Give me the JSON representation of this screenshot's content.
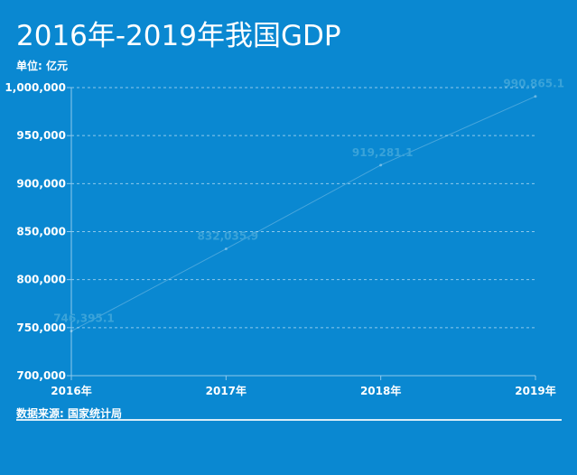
{
  "header": {
    "title": "2016年-2019年我国GDP",
    "unit": "单位: 亿元"
  },
  "footer": {
    "source": "数据来源: 国家统计局"
  },
  "colors": {
    "background": "#0a88d1",
    "text": "#ffffff",
    "gridline": "#8ec9ec",
    "data_label": "#3aa3d9",
    "line": "#ffffff"
  },
  "chart_data": {
    "type": "line",
    "categories": [
      "2016年",
      "2017年",
      "2018年",
      "2019年"
    ],
    "values": [
      746395.1,
      832035.9,
      919281.1,
      990865.1
    ],
    "data_labels": [
      "746,395.1",
      "832,035.9",
      "919,281.1",
      "990,865.1"
    ],
    "y_ticks": [
      700000,
      750000,
      800000,
      850000,
      900000,
      950000,
      1000000
    ],
    "y_tick_labels": [
      "700,000",
      "750,000",
      "800,000",
      "850,000",
      "900,000",
      "950,000",
      "1,000,000"
    ],
    "ylim": [
      700000,
      1000000
    ],
    "grid": true,
    "legend": "none",
    "title": "2016年-2019年我国GDP",
    "xlabel": "",
    "ylabel": "单位: 亿元"
  }
}
